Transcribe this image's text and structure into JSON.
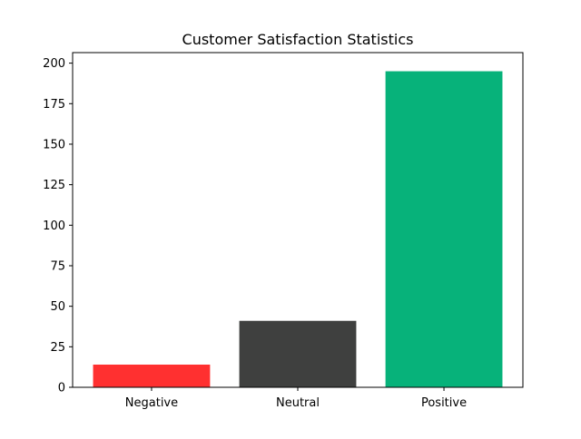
{
  "chart_data": {
    "type": "bar",
    "title": "Customer Satisfaction Statistics",
    "xlabel": "",
    "ylabel": "",
    "categories": [
      "Negative",
      "Neutral",
      "Positive"
    ],
    "values": [
      14,
      41,
      195
    ],
    "colors": [
      "#ff3030",
      "#3f403f",
      "#07b27a"
    ],
    "ylim": [
      0,
      206.5
    ],
    "yticks": [
      0,
      25,
      50,
      75,
      100,
      125,
      150,
      175,
      200
    ],
    "grid": false,
    "legend": "none"
  }
}
